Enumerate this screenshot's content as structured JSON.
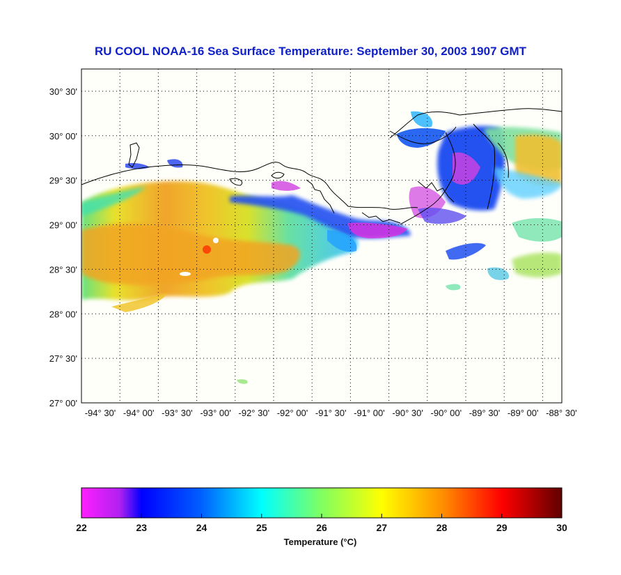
{
  "title": "RU COOL  NOAA-16  Sea Surface Temperature:  September 30, 2003 1907 GMT",
  "map": {
    "lon_min": -94.5,
    "lon_max": -88.25,
    "lat_min": 27.0,
    "lat_max": 30.75,
    "lat_ticks": [
      {
        "value": 27.0,
        "label": "27° 00'"
      },
      {
        "value": 27.5,
        "label": "27° 30'"
      },
      {
        "value": 28.0,
        "label": "28° 00'"
      },
      {
        "value": 28.5,
        "label": "28° 30'"
      },
      {
        "value": 29.0,
        "label": "29° 00'"
      },
      {
        "value": 29.5,
        "label": "29° 30'"
      },
      {
        "value": 30.0,
        "label": "30° 00'"
      },
      {
        "value": 30.5,
        "label": "30° 30'"
      }
    ],
    "lon_ticks": [
      {
        "value": -94.5,
        "label": "-94° 30'"
      },
      {
        "value": -94.0,
        "label": "-94° 00'"
      },
      {
        "value": -93.5,
        "label": "-93° 30'"
      },
      {
        "value": -93.0,
        "label": "-93° 00'"
      },
      {
        "value": -92.5,
        "label": "-92° 30'"
      },
      {
        "value": -92.0,
        "label": "-92° 00'"
      },
      {
        "value": -91.5,
        "label": "-91° 30'"
      },
      {
        "value": -91.0,
        "label": "-91° 00'"
      },
      {
        "value": -90.5,
        "label": "-90° 30'"
      },
      {
        "value": -90.0,
        "label": "-90° 00'"
      },
      {
        "value": -89.5,
        "label": "-89° 30'"
      },
      {
        "value": -89.0,
        "label": "-89° 00'"
      },
      {
        "value": -88.5,
        "label": "-88° 30'"
      }
    ],
    "grid": "dotted",
    "background_color": "#fffffa",
    "coastline_color": "#000000"
  },
  "colorbar": {
    "label": "Temperature (°C)",
    "min": 22,
    "max": 30,
    "ticks": [
      "22",
      "23",
      "24",
      "25",
      "26",
      "27",
      "28",
      "29",
      "30"
    ],
    "colors": [
      "#ff20ff",
      "#9030f0",
      "#0000ff",
      "#0070ff",
      "#00ffff",
      "#80ff60",
      "#ffff00",
      "#ff9000",
      "#ff0000",
      "#600000"
    ]
  }
}
